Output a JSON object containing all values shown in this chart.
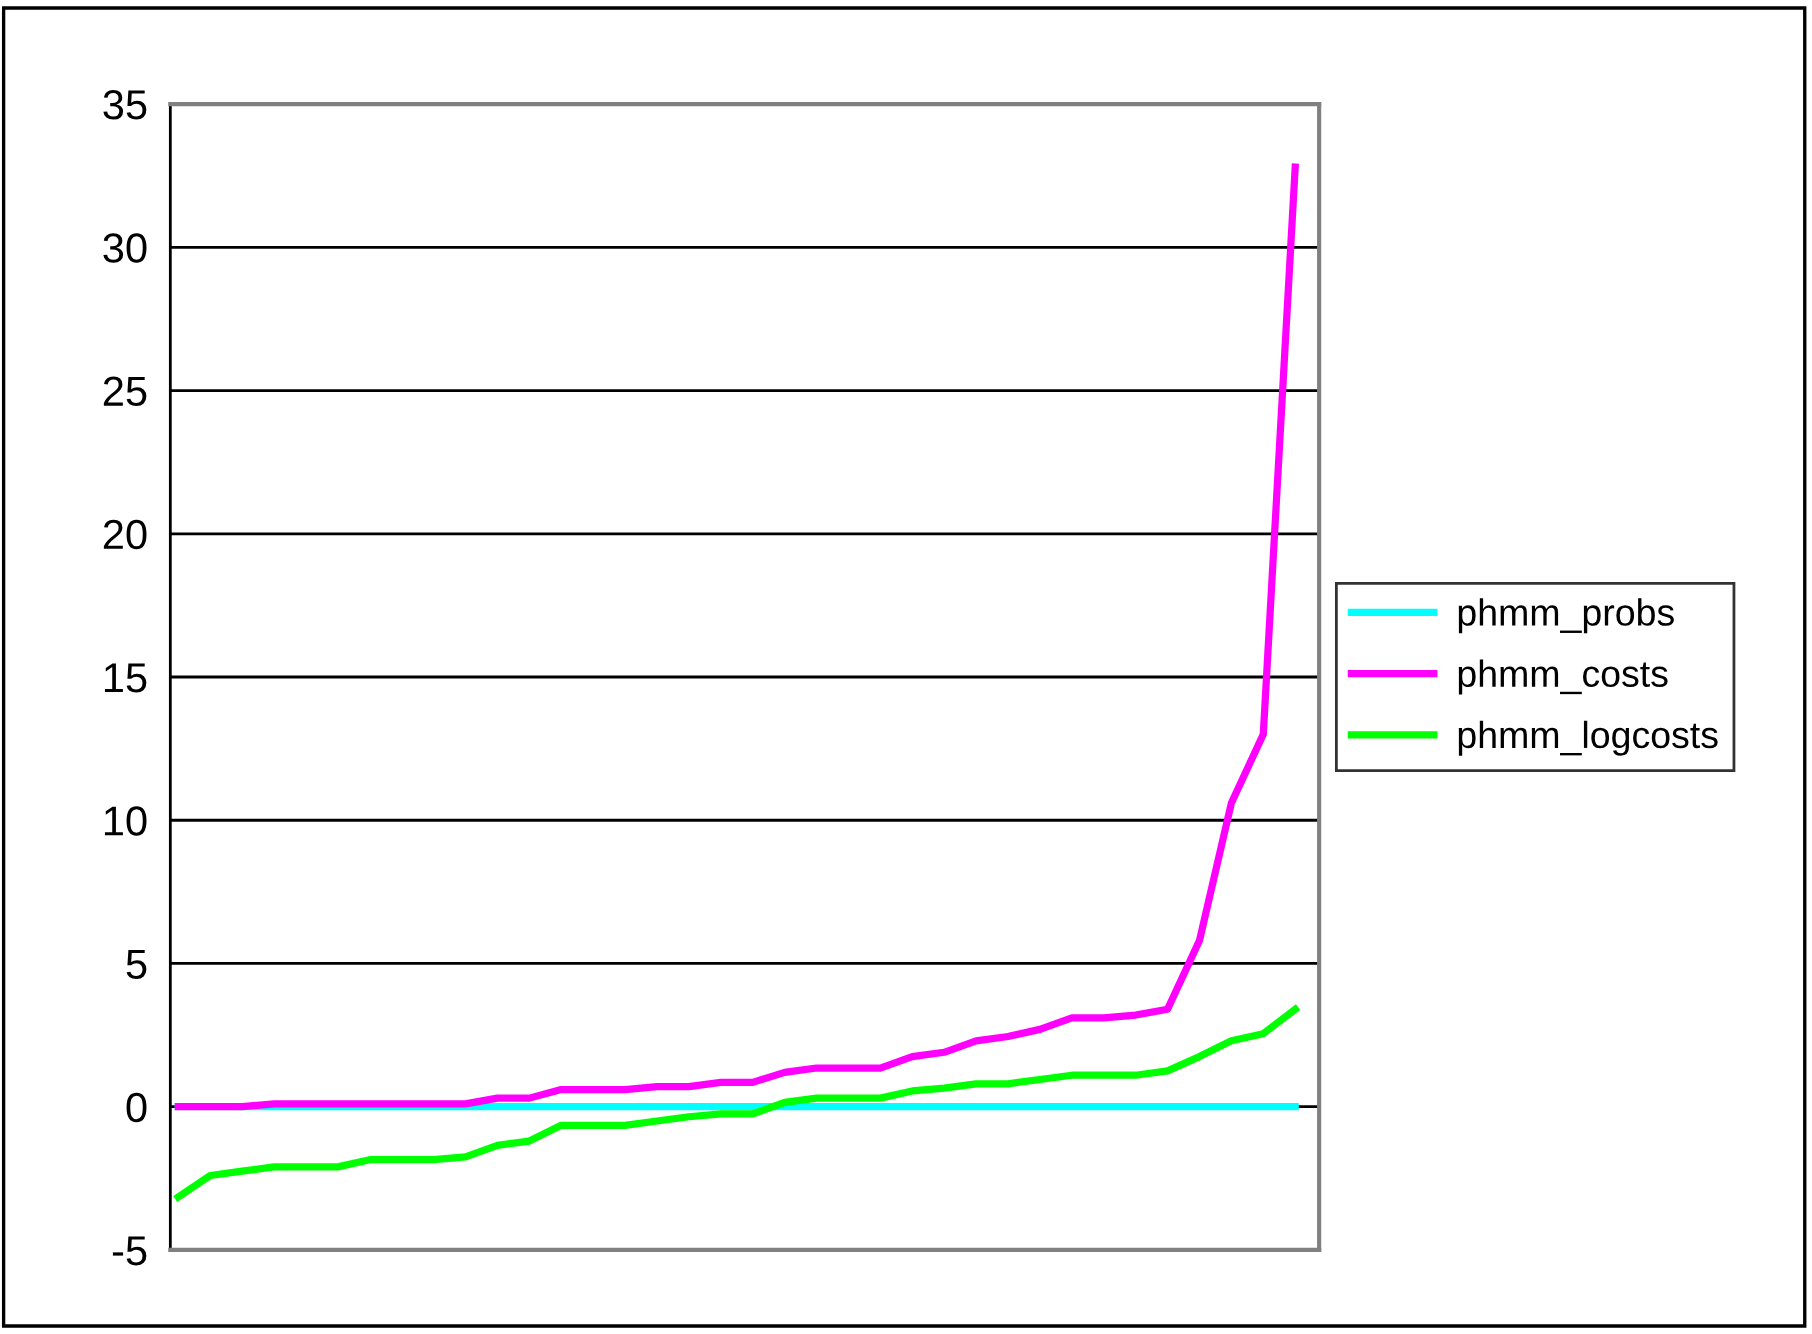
{
  "chart_data": {
    "type": "line",
    "categories": [
      null,
      null,
      null,
      null,
      null,
      null,
      null,
      null,
      null,
      null,
      null,
      null,
      null,
      null,
      null,
      null,
      null,
      null,
      null,
      null,
      null,
      null,
      null,
      null,
      null,
      null,
      null,
      null,
      null,
      null,
      null,
      null,
      null,
      null,
      null,
      null
    ],
    "series": [
      {
        "name": "phmm_probs",
        "color": "#00ffff",
        "values": [
          0,
          0,
          0,
          0,
          0,
          0,
          0,
          0,
          0,
          0,
          0,
          0,
          0,
          0,
          0,
          0,
          0,
          0,
          0,
          0,
          0,
          0,
          0,
          0,
          0,
          0,
          0,
          0,
          0,
          0,
          0,
          0,
          0,
          0,
          0,
          0
        ]
      },
      {
        "name": "phmm_costs",
        "color": "#ff00ff",
        "values": [
          0,
          0,
          0,
          0.1,
          0.1,
          0.1,
          0.1,
          0.1,
          0.1,
          0.1,
          0.3,
          0.3,
          0.6,
          0.6,
          0.6,
          0.7,
          0.7,
          0.85,
          0.85,
          1.2,
          1.35,
          1.35,
          1.35,
          1.75,
          1.9,
          2.3,
          2.45,
          2.7,
          3.1,
          3.1,
          3.2,
          3.4,
          5.8,
          10.6,
          13,
          32.8
        ]
      },
      {
        "name": "phmm_logcosts",
        "color": "#00ff00",
        "values": [
          -3.15,
          -2.4,
          -2.25,
          -2.1,
          -2.1,
          -2.1,
          -1.85,
          -1.85,
          -1.85,
          -1.75,
          -1.35,
          -1.2,
          -0.65,
          -0.65,
          -0.65,
          -0.5,
          -0.35,
          -0.25,
          -0.25,
          0.15,
          0.3,
          0.3,
          0.3,
          0.55,
          0.65,
          0.8,
          0.8,
          0.95,
          1.1,
          1.1,
          1.1,
          1.25,
          1.75,
          2.3,
          2.55,
          3.4
        ]
      }
    ],
    "ylim": [
      -5,
      35
    ],
    "yticks": [
      -5,
      0,
      5,
      10,
      15,
      20,
      25,
      30,
      35
    ],
    "grid": "y",
    "legend": "right",
    "marker": "none",
    "line_style": "solid",
    "tick_labels": "y"
  }
}
